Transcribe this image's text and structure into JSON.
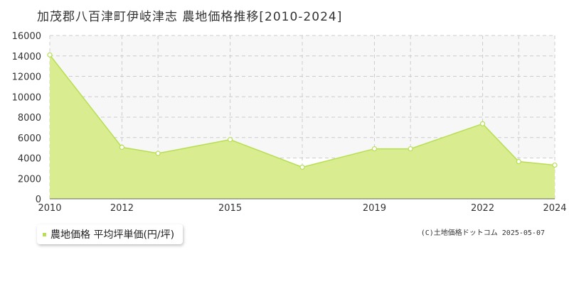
{
  "header": {
    "title": "加茂郡八百津町伊岐津志 農地価格推移[2010-2024]"
  },
  "legend": {
    "label": "農地価格 平均坪単価(円/坪)"
  },
  "credit": "(C)土地価格ドットコム 2025-05-07",
  "colors": {
    "area_fill": "#d9ec8f",
    "line": "#b8de55",
    "marker_fill": "#ffffff",
    "grid": "#cccccc",
    "band": "#f7f7f7",
    "legend_swatch": "#b8de55"
  },
  "chart_data": {
    "type": "area",
    "title": "加茂郡八百津町伊岐津志 農地価格推移[2010-2024]",
    "xlabel": "",
    "ylabel": "",
    "xlim": [
      2010,
      2024
    ],
    "ylim": [
      0,
      16000
    ],
    "grid": true,
    "legend_position": "bottom-left",
    "x_ticks": [
      2010,
      2012,
      2015,
      2019,
      2022,
      2024
    ],
    "y_ticks": [
      0,
      2000,
      4000,
      6000,
      8000,
      10000,
      12000,
      14000,
      16000
    ],
    "series": [
      {
        "name": "農地価格 平均坪単価(円/坪)",
        "x": [
          2010,
          2012,
          2013,
          2015,
          2017,
          2019,
          2020,
          2022,
          2023,
          2024
        ],
        "values": [
          14100,
          5050,
          4450,
          5800,
          3100,
          4900,
          4900,
          7350,
          3650,
          3300
        ]
      }
    ]
  }
}
